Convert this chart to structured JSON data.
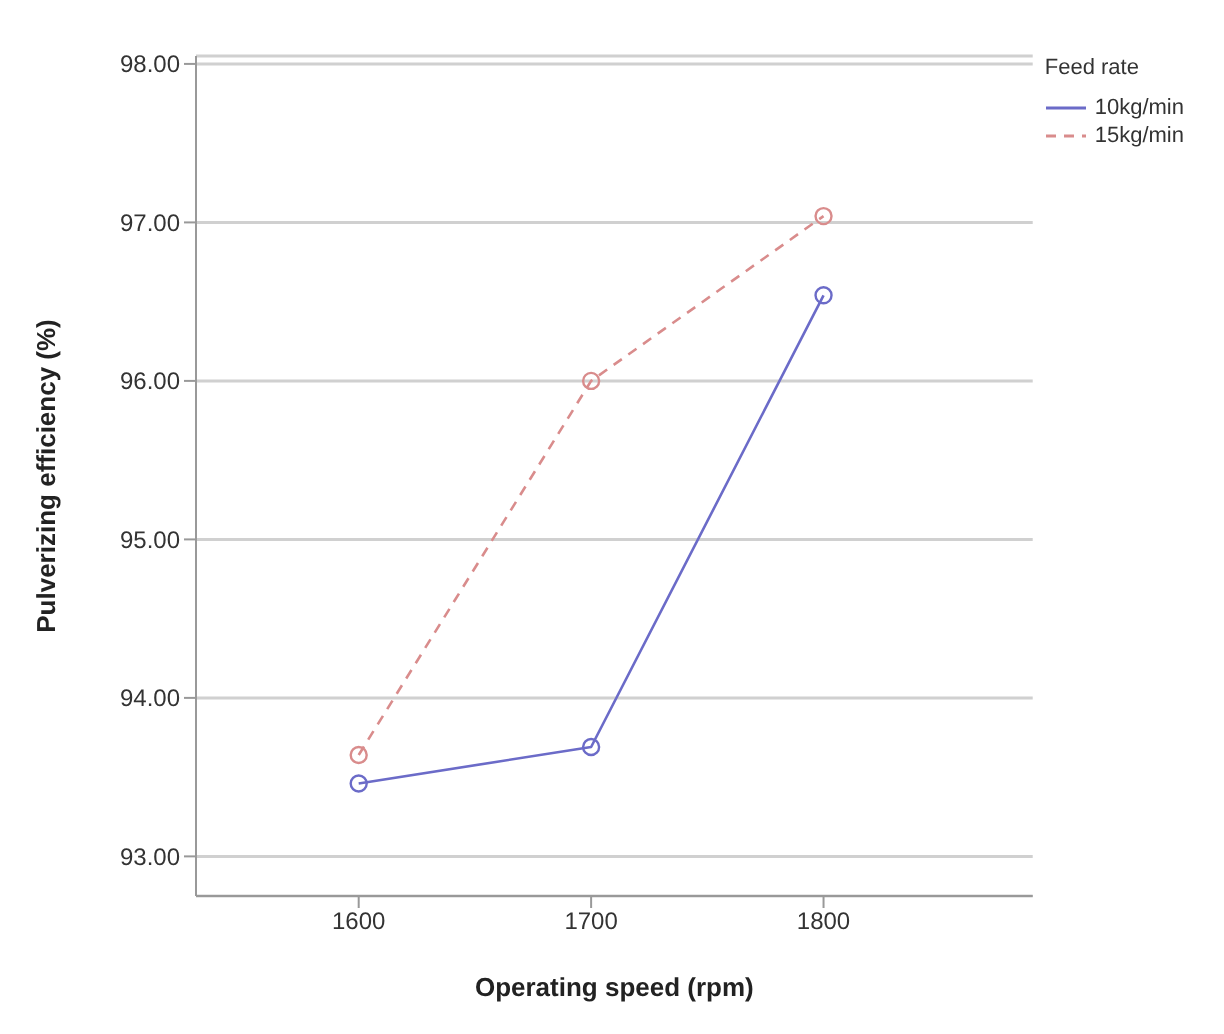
{
  "chart_data": {
    "type": "line",
    "xlabel": "Operating speed (rpm)",
    "ylabel": "Pulverizing efficiency (%)",
    "legend_title": "Feed rate",
    "x": [
      1600,
      1700,
      1800
    ],
    "series": [
      {
        "name": "10kg/min",
        "color": "#6b6bc8",
        "values": [
          93.46,
          93.69,
          96.54
        ],
        "line_style": "solid"
      },
      {
        "name": "15kg/min",
        "color": "#d98c8c",
        "values": [
          93.64,
          96.0,
          97.04
        ],
        "line_style": "dashed"
      }
    ],
    "xlim": [
      1530,
      1890
    ],
    "xticks": [
      1600,
      1700,
      1800
    ],
    "ylim": [
      92.75,
      98.05
    ],
    "yticks": [
      {
        "value": 93,
        "label": "93.00"
      },
      {
        "value": 94,
        "label": "94.00"
      },
      {
        "value": 95,
        "label": "95.00"
      },
      {
        "value": 96,
        "label": "96.00"
      },
      {
        "value": 97,
        "label": "97.00"
      },
      {
        "value": 98,
        "label": "98.00"
      }
    ],
    "grid": "y",
    "legend": "top right",
    "marker": "circle"
  }
}
